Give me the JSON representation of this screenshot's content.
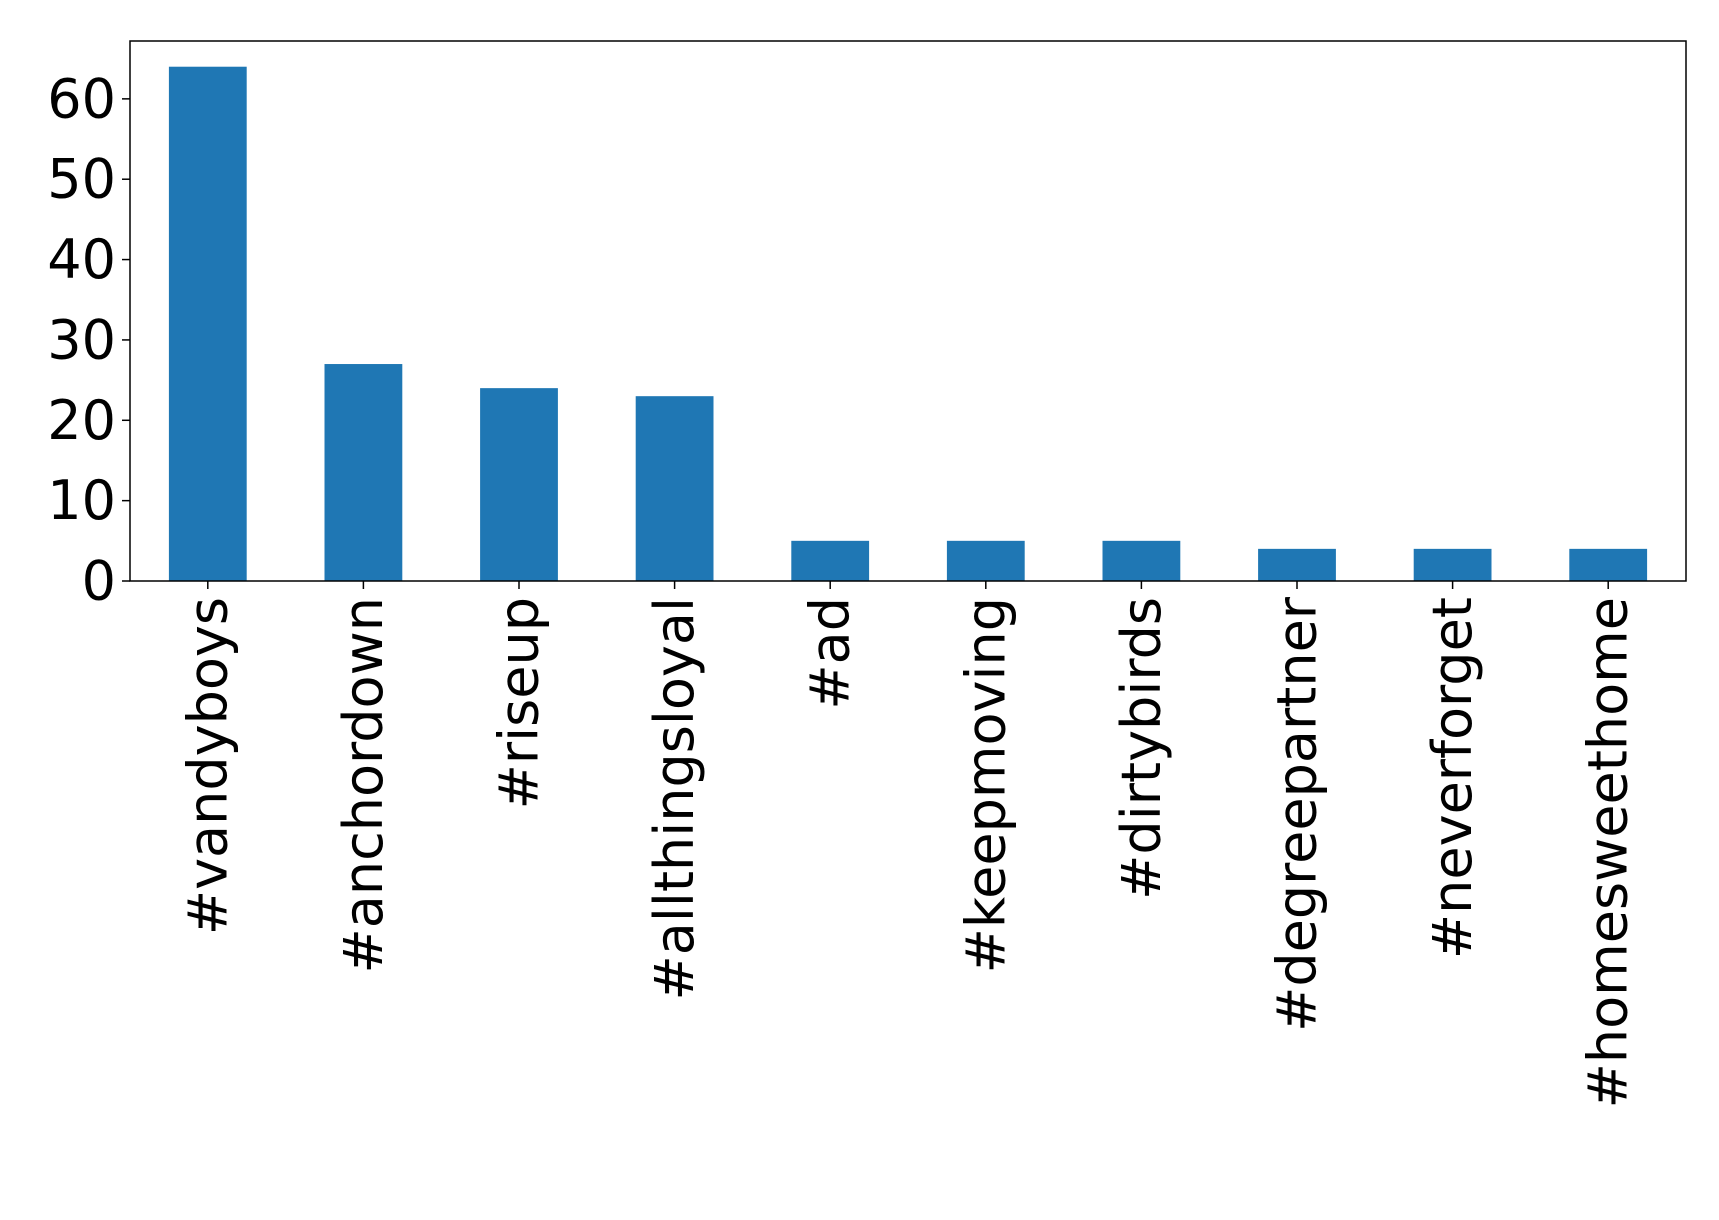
{
  "chart_data": {
    "type": "bar",
    "title": "",
    "xlabel": "",
    "ylabel": "",
    "categories": [
      "#vandyboys",
      "#anchordown",
      "#riseup",
      "#allthingsloyal",
      "#ad",
      "#keepmoving",
      "#dirtybirds",
      "#degreepartner",
      "#neverforget",
      "#homesweethome"
    ],
    "values": [
      64,
      27,
      24,
      23,
      5,
      5,
      5,
      4,
      4,
      4
    ],
    "ylim": [
      0,
      67.2
    ],
    "yticks": [
      0,
      10,
      20,
      30,
      40,
      50,
      60
    ],
    "ytick_labels": [
      "0",
      "10",
      "20",
      "30",
      "40",
      "50",
      "60"
    ],
    "grid": false,
    "legend": "none",
    "bar_color": "#1f77b4"
  }
}
